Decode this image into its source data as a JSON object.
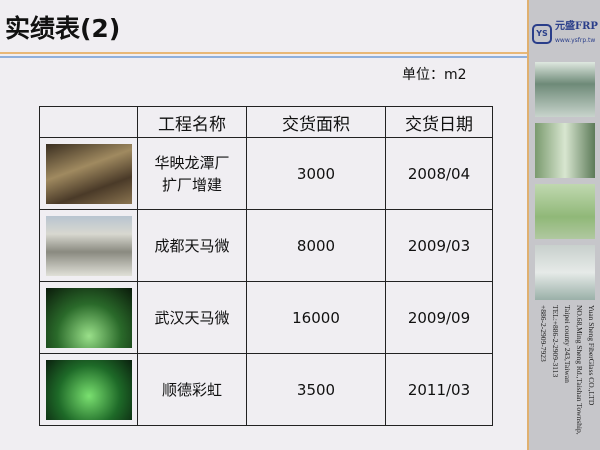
{
  "header": {
    "title": "实绩表(2)",
    "unit": "单位：m2"
  },
  "logo": {
    "mark": "YS",
    "name": "元盛FRP",
    "url": "www.ysfrp.tw"
  },
  "table": {
    "columns": [
      "",
      "工程名称",
      "交货面积",
      "交货日期"
    ],
    "rows": [
      {
        "name": "华映龙潭厂\n扩厂增建",
        "area": "3000",
        "date": "2008/04"
      },
      {
        "name": "成都天马微",
        "area": "8000",
        "date": "2009/03"
      },
      {
        "name": "武汉天马微",
        "area": "16000",
        "date": "2009/09"
      },
      {
        "name": "顺德彩虹",
        "area": "3500",
        "date": "2011/03"
      }
    ]
  },
  "company": {
    "lines": [
      "Yuan Sheng FiberGlass CO.,LTD",
      "NO.68,Ming Sheng Rd.,Taishan Township,",
      "Taipei county 243,Taiwan",
      "TEL:+886-2-2909-3113",
      "+886-2-2909-7923"
    ]
  },
  "colors": {
    "accent_orange": "#e8b878",
    "accent_blue": "#8fb0dc",
    "brand": "#2a3e8a"
  }
}
